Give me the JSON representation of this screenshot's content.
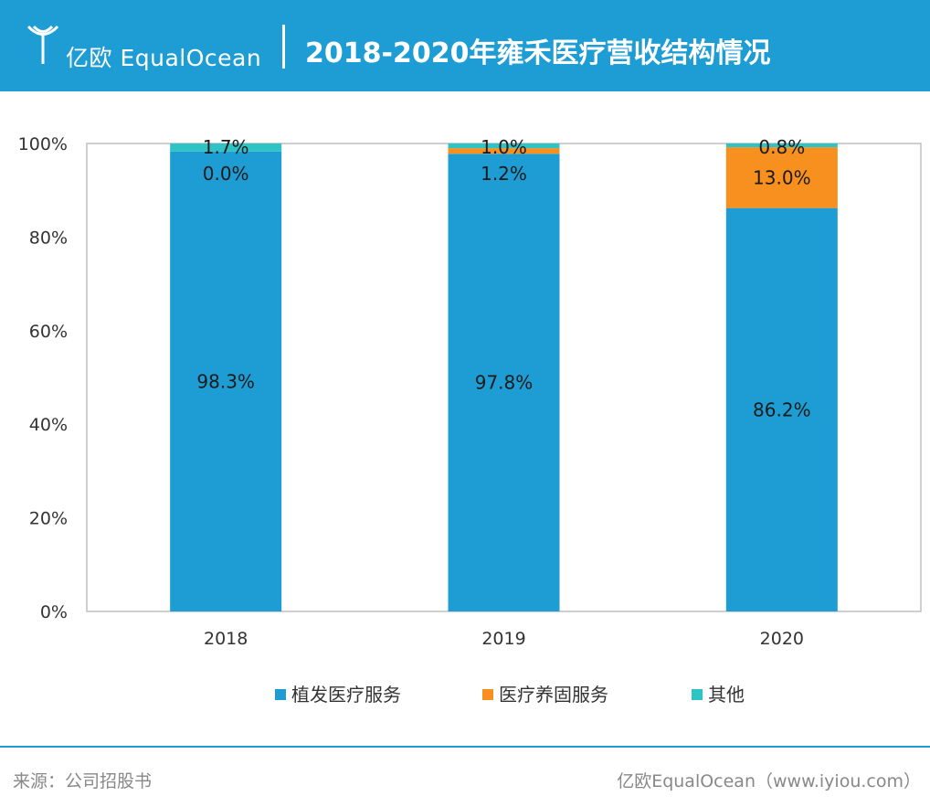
{
  "header": {
    "logo_text": "亿欧 EqualOcean",
    "title": "2018-2020年雍禾医疗营收结构情况"
  },
  "chart_data": {
    "type": "bar",
    "stacked": true,
    "categories": [
      "2018",
      "2019",
      "2020"
    ],
    "series": [
      {
        "name": "植发医疗服务",
        "color": "#1e9dd4",
        "values": [
          98.3,
          97.8,
          86.2
        ],
        "labels": [
          "98.3%",
          "97.8%",
          "86.2%"
        ]
      },
      {
        "name": "医疗养固服务",
        "color": "#f7901e",
        "values": [
          0.0,
          1.2,
          13.0
        ],
        "labels": [
          "0.0%",
          "1.2%",
          "13.0%"
        ]
      },
      {
        "name": "其他",
        "color": "#2ec4c6",
        "values": [
          1.7,
          1.0,
          0.8
        ],
        "labels": [
          "1.7%",
          "1.0%",
          "0.8%"
        ]
      }
    ],
    "ylim": [
      0,
      100
    ],
    "yticks": [
      0,
      20,
      40,
      60,
      80,
      100
    ],
    "ytick_labels": [
      "0%",
      "20%",
      "40%",
      "60%",
      "80%",
      "100%"
    ],
    "legend_position": "bottom"
  },
  "footer": {
    "source": "来源：公司招股书",
    "credit": "亿欧EqualOcean（www.iyiou.com）"
  }
}
